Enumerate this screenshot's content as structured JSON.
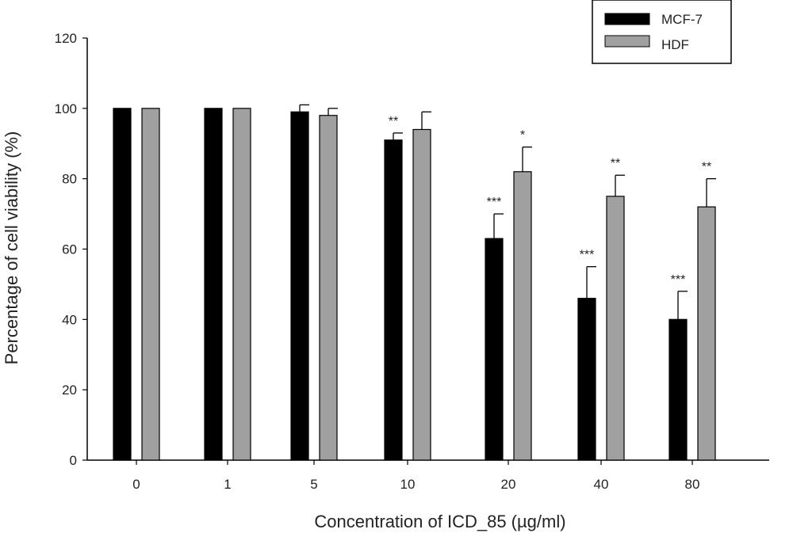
{
  "chart_data": {
    "type": "bar",
    "xlabel": "Concentration of ICD_85 (µg/ml)",
    "ylabel": "Percentage of cell viability (%)",
    "categories": [
      "0",
      "1",
      "5",
      "10",
      "20",
      "40",
      "80"
    ],
    "ylim": [
      0,
      120
    ],
    "yticks": [
      "0",
      "20",
      "40",
      "60",
      "80",
      "100",
      "120"
    ],
    "grid": false,
    "legend_position": "top-right",
    "series": [
      {
        "name": "MCF-7",
        "color": "#000000",
        "values": [
          100,
          100,
          99,
          91,
          63,
          46,
          40
        ],
        "errors": [
          0,
          0,
          2,
          2,
          7,
          9,
          8
        ],
        "annotations": [
          "",
          "",
          "",
          "**",
          "***",
          "***",
          "***"
        ]
      },
      {
        "name": "HDF",
        "color": "#a0a0a0",
        "values": [
          100,
          100,
          98,
          94,
          82,
          75,
          72
        ],
        "errors": [
          0,
          0,
          2,
          5,
          7,
          6,
          8
        ],
        "annotations": [
          "",
          "",
          "",
          "",
          "*",
          "**",
          "**"
        ]
      }
    ]
  }
}
